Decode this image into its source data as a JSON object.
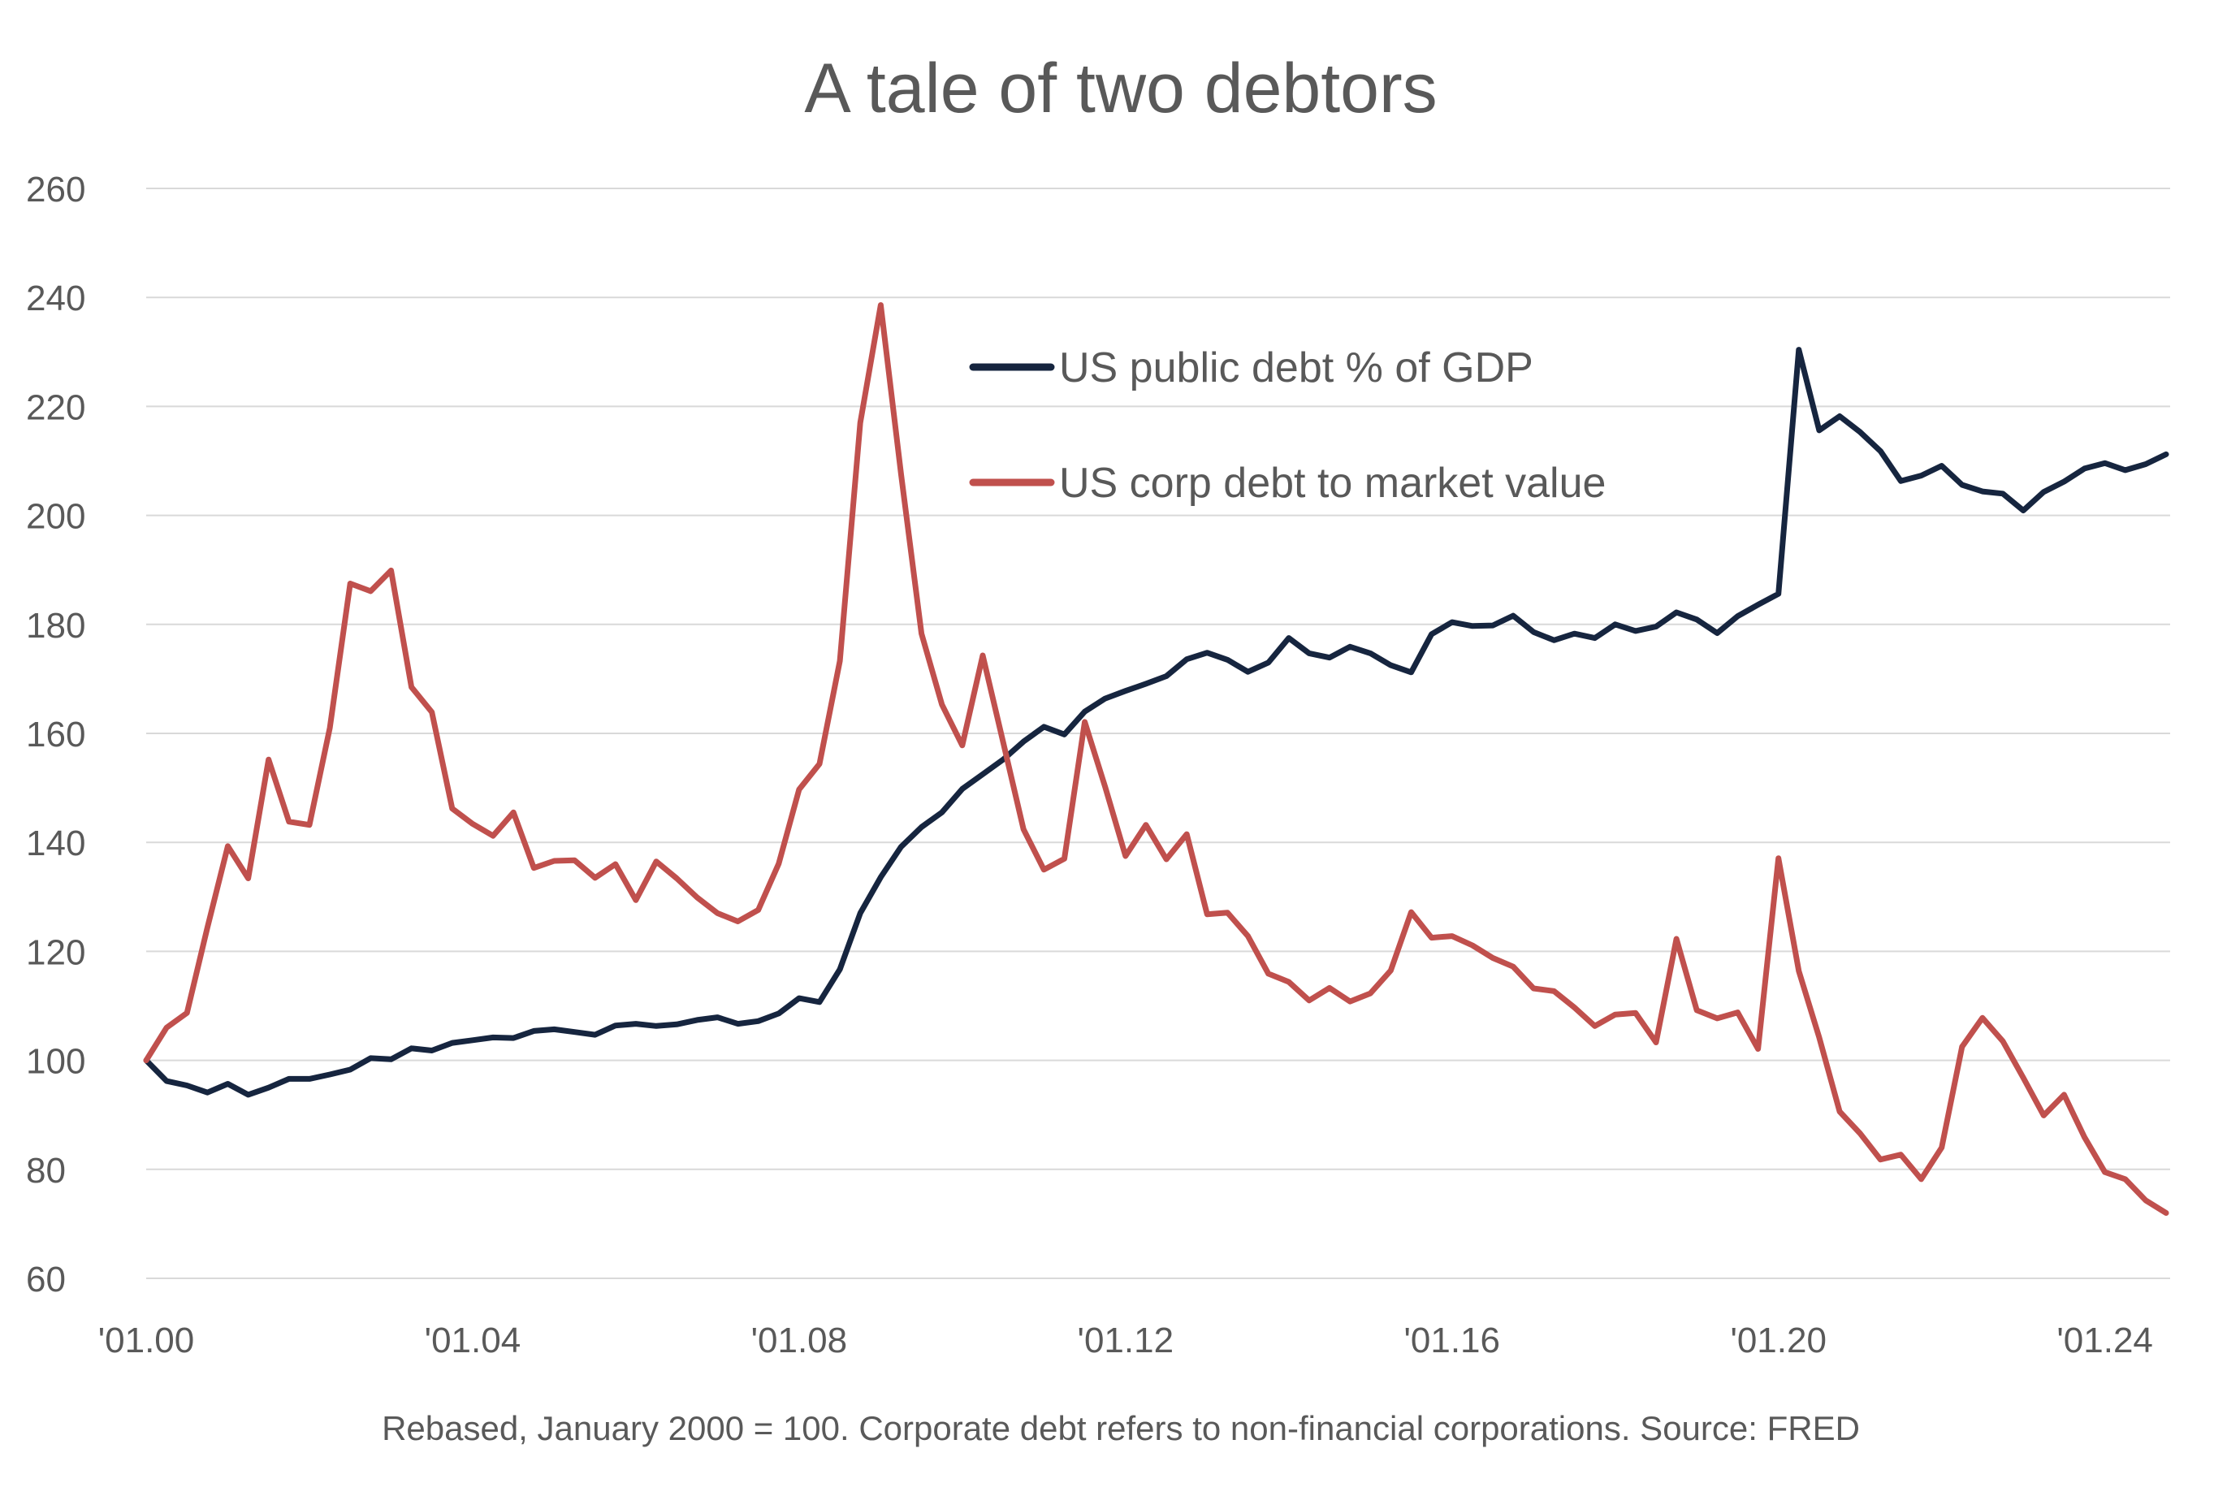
{
  "chart_data": {
    "type": "line",
    "title": "A tale of two debtors",
    "note": "Rebased, January 2000 = 100. Corporate debt refers to non-financial corporations. Source: FRED",
    "xlabel": "",
    "ylabel": "",
    "ylim": [
      60,
      260
    ],
    "y_ticks": [
      "60",
      "80",
      "100",
      "120",
      "140",
      "160",
      "180",
      "200",
      "220",
      "240",
      "260"
    ],
    "x_ticks": [
      "'01.00",
      "'01.04",
      "'01.08",
      "'01.12",
      "'01.16",
      "'01.20",
      "'01.24"
    ],
    "x_tick_dates": [
      2000.0,
      2004.0,
      2008.0,
      2012.0,
      2016.0,
      2020.0,
      2024.0
    ],
    "xlim": [
      2000.0,
      2024.75
    ],
    "grid": true,
    "legend_position": "upper-middle",
    "x_start": 2000.0,
    "x_step": 0.25,
    "series": [
      {
        "name": "US public debt % of GDP",
        "color": "#16253f",
        "values": [
          100,
          96.2,
          95.4,
          94.1,
          95.7,
          93.7,
          95,
          96.6,
          96.6,
          97.4,
          98.3,
          100.4,
          100.2,
          102.2,
          101.8,
          103.2,
          103.7,
          104.2,
          104.1,
          105.4,
          105.7,
          105.2,
          104.7,
          106.4,
          106.7,
          106.3,
          106.6,
          107.4,
          107.9,
          106.7,
          107.2,
          108.6,
          111.4,
          110.7,
          116.7,
          127,
          133.6,
          139.2,
          142.8,
          145.5,
          149.8,
          152.5,
          155.2,
          158.5,
          161.2,
          159.8,
          164,
          166.4,
          167.8,
          169.1,
          170.5,
          173.6,
          174.8,
          173.5,
          171.3,
          173,
          177.5,
          174.7,
          173.9,
          175.9,
          174.7,
          172.5,
          171.2,
          178.2,
          180.4,
          179.7,
          179.8,
          181.6,
          178.6,
          177.1,
          178.3,
          177.5,
          180,
          178.8,
          179.6,
          182.2,
          180.9,
          178.4,
          181.5,
          183.6,
          185.6,
          230.4,
          215.6,
          218.2,
          215.3,
          211.8,
          206.3,
          207.3,
          209.1,
          205.6,
          204.4,
          204,
          200.9,
          204.3,
          206.2,
          208.6,
          209.6,
          208.3,
          209.4,
          211.2
        ]
      },
      {
        "name": "US corp debt to market value",
        "color": "#c0504d",
        "values": [
          100,
          106,
          108.7,
          124.4,
          139.3,
          133.4,
          155.2,
          143.8,
          143.2,
          161,
          187.5,
          186.1,
          189.9,
          168.5,
          163.9,
          146.2,
          143.4,
          141.2,
          145.5,
          135.3,
          136.6,
          136.7,
          133.5,
          136,
          129.4,
          136.5,
          133.4,
          129.9,
          127,
          125.5,
          127.6,
          136.1,
          149.7,
          154.4,
          173.3,
          217,
          238.6,
          207.5,
          178.3,
          165.3,
          157.8,
          174.3,
          158.4,
          142.4,
          135,
          137,
          162.1,
          150.2,
          137.5,
          143.2,
          136.9,
          141.5,
          126.8,
          127.1,
          122.8,
          115.9,
          114.4,
          111,
          113.3,
          110.8,
          112.3,
          116.5,
          127.2,
          122.5,
          122.8,
          121.1,
          118.8,
          117.2,
          113.2,
          112.7,
          109.7,
          106.3,
          108.4,
          108.7,
          103.3,
          122.3,
          109.2,
          107.7,
          108.8,
          102.1,
          137.1,
          116.4,
          104.2,
          90.6,
          86.6,
          81.8,
          82.7,
          78.2,
          84,
          102.5,
          107.8,
          103.5,
          96.8,
          89.9,
          93.7,
          85.9,
          79.5,
          78.2,
          74.3,
          72
        ]
      }
    ]
  }
}
